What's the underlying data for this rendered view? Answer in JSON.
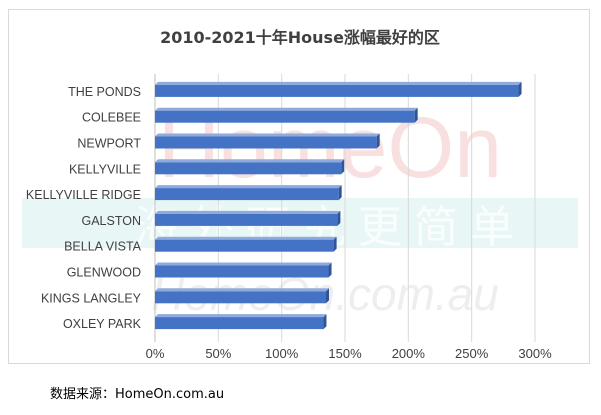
{
  "source_note": "数据来源：HomeOn.com.au",
  "watermark": {
    "logo_text": "HomeOn",
    "slogan": "海外研究更简单",
    "url_text": "HomeOn.com.au"
  },
  "chart_data": {
    "type": "bar",
    "orientation": "horizontal",
    "title": "2010-2021十年House涨幅最好的区",
    "xlabel": "",
    "ylabel": "",
    "categories": [
      "THE PONDS",
      "COLEBEE",
      "NEWPORT",
      "KELLYVILLE",
      "KELLYVILLE RIDGE",
      "GALSTON",
      "BELLA VISTA",
      "GLENWOOD",
      "KINGS LANGLEY",
      "OXLEY PARK"
    ],
    "values": [
      2.87,
      2.05,
      1.75,
      1.47,
      1.45,
      1.44,
      1.41,
      1.37,
      1.35,
      1.33
    ],
    "xlim": [
      0,
      3.0
    ],
    "xticks": [
      "0%",
      "50%",
      "100%",
      "150%",
      "200%",
      "250%",
      "300%"
    ],
    "grid": "vertical",
    "legend": "none",
    "bar_color": "#4472c4",
    "bar_color_dark": "#2f5597"
  }
}
